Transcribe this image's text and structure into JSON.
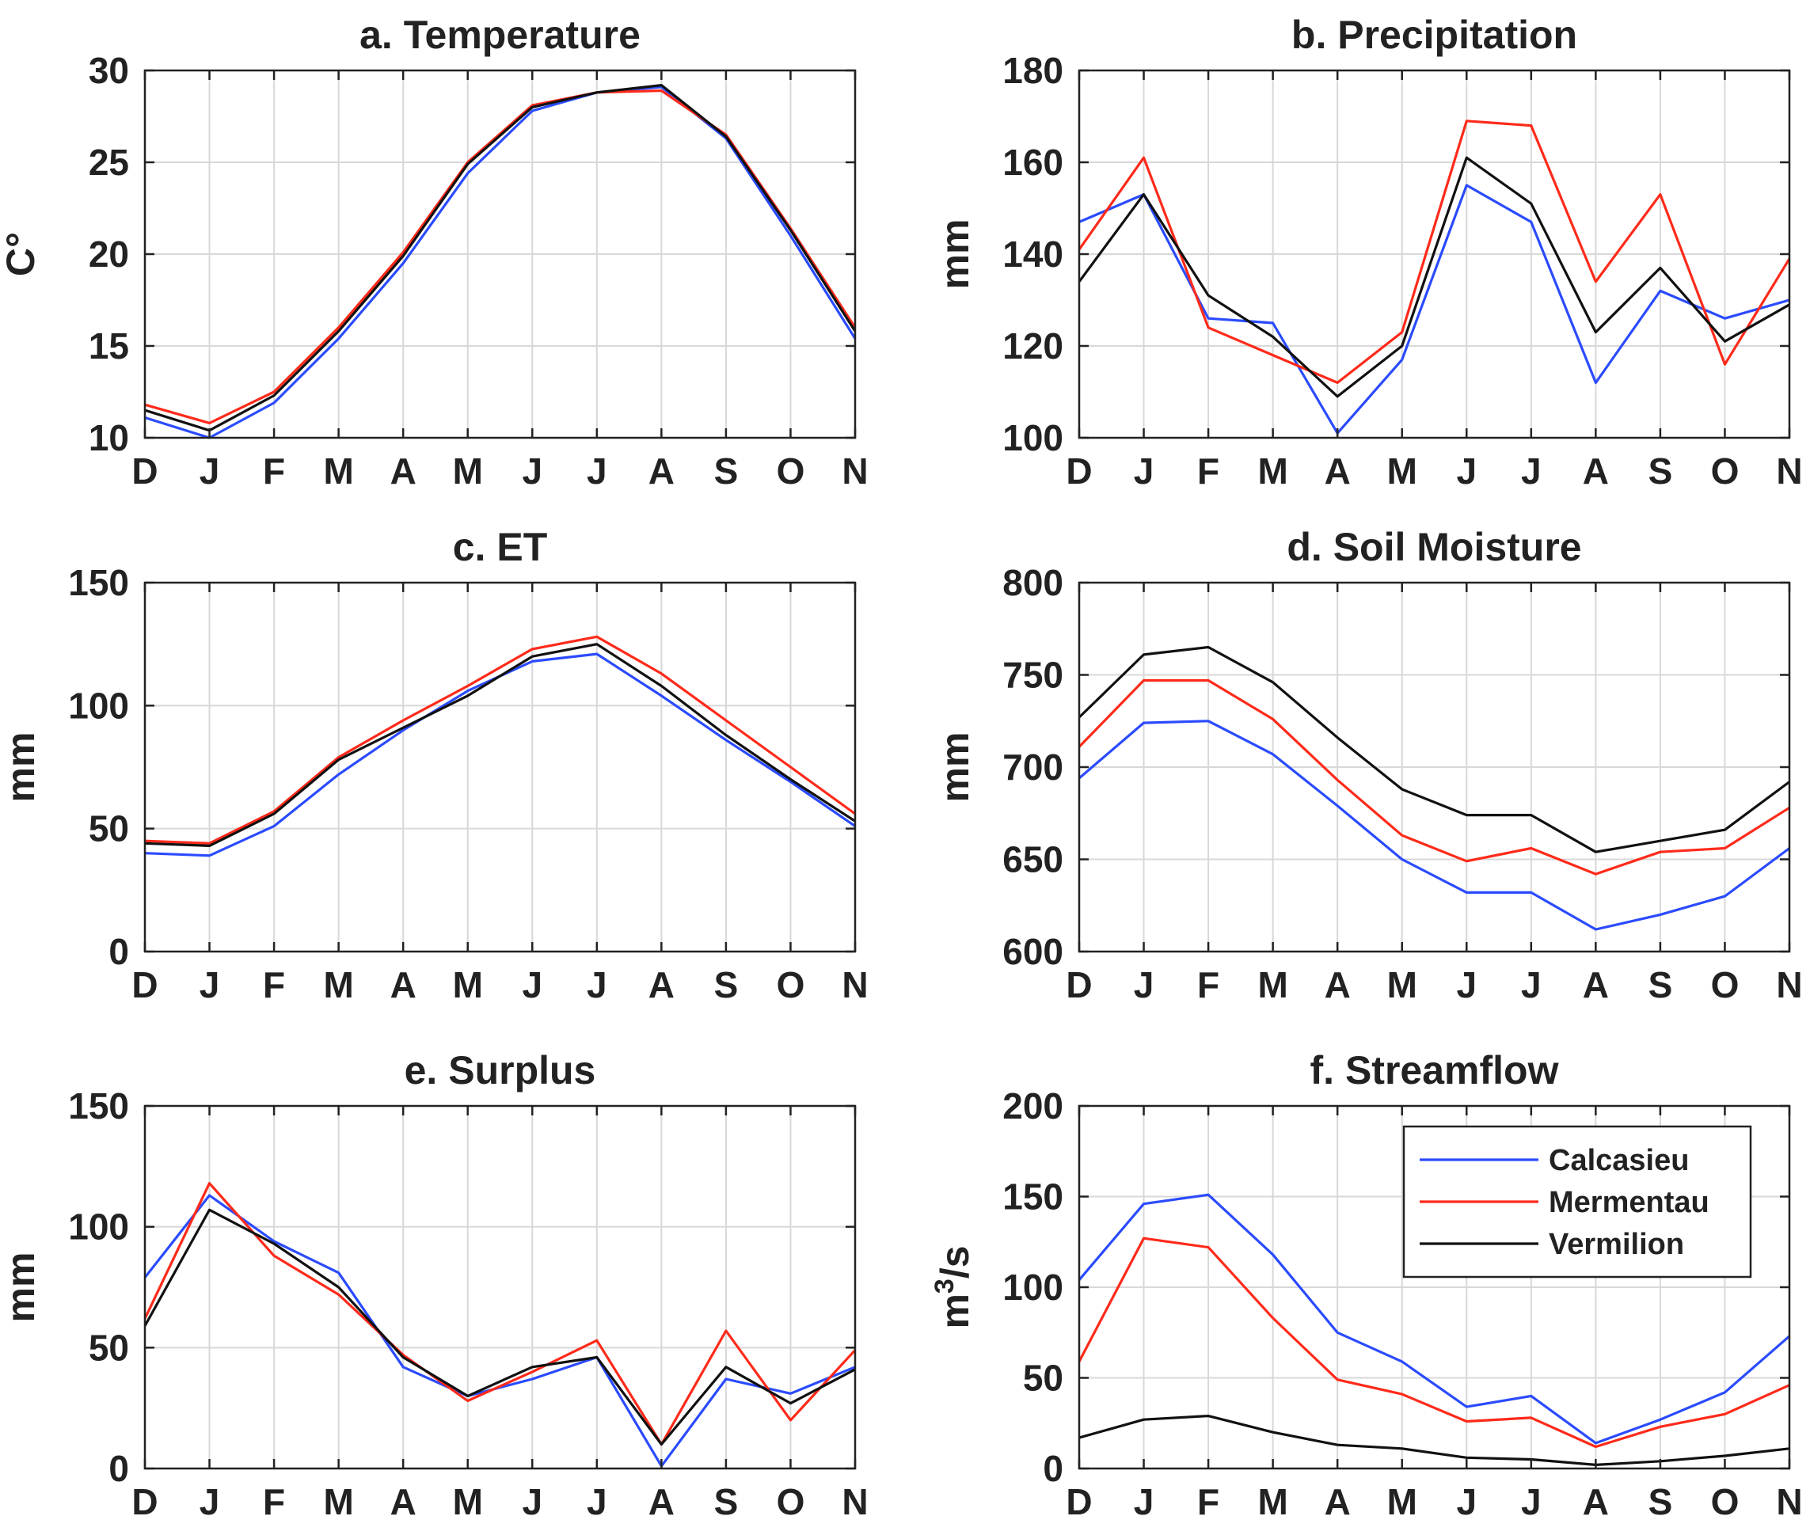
{
  "colors": {
    "Calcasieu": "#2b4bff",
    "Mermentau": "#ff2a1a",
    "Vermilion": "#111111",
    "grid": "#d8d8d8",
    "axis": "#222222"
  },
  "legend": {
    "placement": "top-right of panel f",
    "entries": [
      "Calcasieu",
      "Mermentau",
      "Vermilion"
    ]
  },
  "chart_data": [
    {
      "id": "a",
      "type": "line",
      "title": "a. Temperature",
      "xlabel": "",
      "ylabel": "C°",
      "grid": true,
      "categories": [
        "D",
        "J",
        "F",
        "M",
        "A",
        "M",
        "J",
        "J",
        "A",
        "S",
        "O",
        "N"
      ],
      "ylim": [
        10,
        30
      ],
      "yticks": [
        10,
        15,
        20,
        25,
        30
      ],
      "series": [
        {
          "name": "Calcasieu",
          "values": [
            11.1,
            10.0,
            11.9,
            15.4,
            19.5,
            24.4,
            27.8,
            28.8,
            29.1,
            26.3,
            21.0,
            15.4
          ]
        },
        {
          "name": "Mermentau",
          "values": [
            11.8,
            10.8,
            12.5,
            16.0,
            20.1,
            25.0,
            28.1,
            28.8,
            28.9,
            26.5,
            21.4,
            16.0
          ]
        },
        {
          "name": "Vermilion",
          "values": [
            11.5,
            10.4,
            12.3,
            15.8,
            19.9,
            24.9,
            28.0,
            28.8,
            29.2,
            26.4,
            21.3,
            15.8
          ]
        }
      ]
    },
    {
      "id": "b",
      "type": "line",
      "title": "b. Precipitation",
      "xlabel": "",
      "ylabel": "mm",
      "grid": true,
      "categories": [
        "D",
        "J",
        "F",
        "M",
        "A",
        "M",
        "J",
        "J",
        "A",
        "S",
        "O",
        "N"
      ],
      "ylim": [
        100,
        180
      ],
      "yticks": [
        100,
        120,
        140,
        160,
        180
      ],
      "series": [
        {
          "name": "Calcasieu",
          "values": [
            147,
            153,
            126,
            125,
            101,
            117,
            155,
            147,
            112,
            132,
            126,
            130
          ]
        },
        {
          "name": "Mermentau",
          "values": [
            141,
            161,
            124,
            118,
            112,
            123,
            169,
            168,
            134,
            153,
            116,
            139
          ]
        },
        {
          "name": "Vermilion",
          "values": [
            134,
            153,
            131,
            122,
            109,
            120,
            161,
            151,
            123,
            137,
            121,
            129
          ]
        }
      ]
    },
    {
      "id": "c",
      "type": "line",
      "title": "c. ET",
      "xlabel": "",
      "ylabel": "mm",
      "grid": true,
      "categories": [
        "D",
        "J",
        "F",
        "M",
        "A",
        "M",
        "J",
        "J",
        "A",
        "S",
        "O",
        "N"
      ],
      "ylim": [
        0,
        150
      ],
      "yticks": [
        0,
        50,
        100,
        150
      ],
      "series": [
        {
          "name": "Calcasieu",
          "values": [
            40,
            39,
            51,
            72,
            90,
            106,
            118,
            121,
            104,
            86,
            69,
            51
          ]
        },
        {
          "name": "Mermentau",
          "values": [
            45,
            44,
            57,
            79,
            94,
            108,
            123,
            128,
            113,
            94,
            75,
            56
          ]
        },
        {
          "name": "Vermilion",
          "values": [
            44,
            43,
            56,
            78,
            91,
            104,
            120,
            125,
            108,
            88,
            70,
            53
          ]
        }
      ]
    },
    {
      "id": "d",
      "type": "line",
      "title": "d. Soil Moisture",
      "xlabel": "",
      "ylabel": "mm",
      "grid": true,
      "categories": [
        "D",
        "J",
        "F",
        "M",
        "A",
        "M",
        "J",
        "J",
        "A",
        "S",
        "O",
        "N"
      ],
      "ylim": [
        600,
        800
      ],
      "yticks": [
        600,
        650,
        700,
        750,
        800
      ],
      "series": [
        {
          "name": "Calcasieu",
          "values": [
            694,
            724,
            725,
            707,
            679,
            650,
            632,
            632,
            612,
            620,
            630,
            656
          ]
        },
        {
          "name": "Mermentau",
          "values": [
            711,
            747,
            747,
            726,
            693,
            663,
            649,
            656,
            642,
            654,
            656,
            678
          ]
        },
        {
          "name": "Vermilion",
          "values": [
            727,
            761,
            765,
            746,
            716,
            688,
            674,
            674,
            654,
            660,
            666,
            692
          ]
        }
      ]
    },
    {
      "id": "e",
      "type": "line",
      "title": "e. Surplus",
      "xlabel": "",
      "ylabel": "mm",
      "grid": true,
      "categories": [
        "D",
        "J",
        "F",
        "M",
        "A",
        "M",
        "J",
        "J",
        "A",
        "S",
        "O",
        "N"
      ],
      "ylim": [
        0,
        150
      ],
      "yticks": [
        0,
        50,
        100,
        150
      ],
      "series": [
        {
          "name": "Calcasieu",
          "values": [
            79,
            113,
            94,
            81,
            42,
            30,
            37,
            46,
            1,
            37,
            31,
            42
          ]
        },
        {
          "name": "Mermentau",
          "values": [
            62,
            118,
            88,
            72,
            47,
            28,
            40,
            53,
            10,
            57,
            20,
            49
          ]
        },
        {
          "name": "Vermilion",
          "values": [
            59,
            107,
            93,
            75,
            46,
            30,
            42,
            46,
            10,
            42,
            27,
            41
          ]
        }
      ]
    },
    {
      "id": "f",
      "type": "line",
      "title": "f. Streamflow",
      "xlabel": "",
      "ylabel": "m3/s",
      "grid": true,
      "categories": [
        "D",
        "J",
        "F",
        "M",
        "A",
        "M",
        "J",
        "J",
        "A",
        "S",
        "O",
        "N"
      ],
      "ylim": [
        0,
        200
      ],
      "yticks": [
        0,
        50,
        100,
        150,
        200
      ],
      "series": [
        {
          "name": "Calcasieu",
          "values": [
            104,
            146,
            151,
            118,
            75,
            59,
            34,
            40,
            14,
            27,
            42,
            73
          ]
        },
        {
          "name": "Mermentau",
          "values": [
            59,
            127,
            122,
            83,
            49,
            41,
            26,
            28,
            12,
            23,
            30,
            46
          ]
        },
        {
          "name": "Vermilion",
          "values": [
            17,
            27,
            29,
            20,
            13,
            11,
            6,
            5,
            2,
            4,
            7,
            11
          ]
        }
      ]
    }
  ]
}
